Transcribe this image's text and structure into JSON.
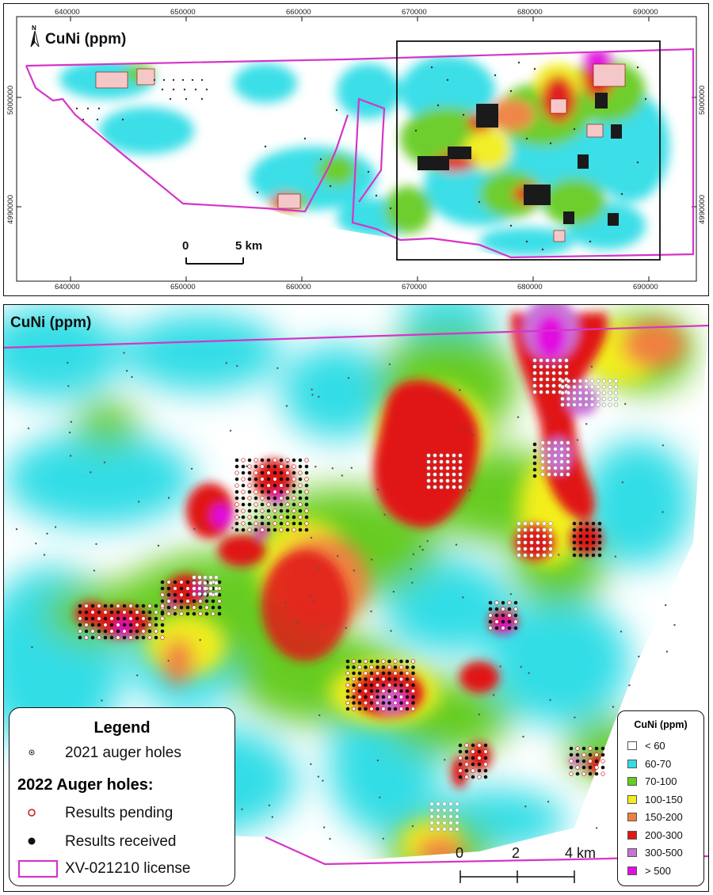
{
  "top_map": {
    "title": "CuNi (ppm)",
    "north_label": "N",
    "x_ticks": [
      "640000",
      "650000",
      "660000",
      "670000",
      "680000",
      "690000"
    ],
    "y_ticks": [
      "5000000",
      "4990000"
    ],
    "scale": {
      "zero": "0",
      "end": "5 km"
    }
  },
  "bottom_map": {
    "title": "CuNi (ppm)",
    "scale": {
      "labels": [
        "0",
        "2",
        "4 km"
      ]
    }
  },
  "legend": {
    "title": "Legend",
    "auger_2021": "2021 auger holes",
    "heading_2022": "2022 Auger holes:",
    "pending": "Results pending",
    "received": "Results received",
    "license": "XV-021210 license"
  },
  "ramp": {
    "title": "CuNi (ppm)",
    "classes": [
      {
        "label": "< 60",
        "color": "#ffffff"
      },
      {
        "label": "60-70",
        "color": "#33dde6"
      },
      {
        "label": "70-100",
        "color": "#66cc22"
      },
      {
        "label": "100-150",
        "color": "#f2ee1c"
      },
      {
        "label": "150-200",
        "color": "#f08040"
      },
      {
        "label": "200-300",
        "color": "#e01818"
      },
      {
        "label": "300-500",
        "color": "#c873d8"
      },
      {
        "label": "> 500",
        "color": "#e010e0"
      }
    ]
  },
  "colors": {
    "license_boundary": "#d535c8",
    "frame": "#111111"
  }
}
